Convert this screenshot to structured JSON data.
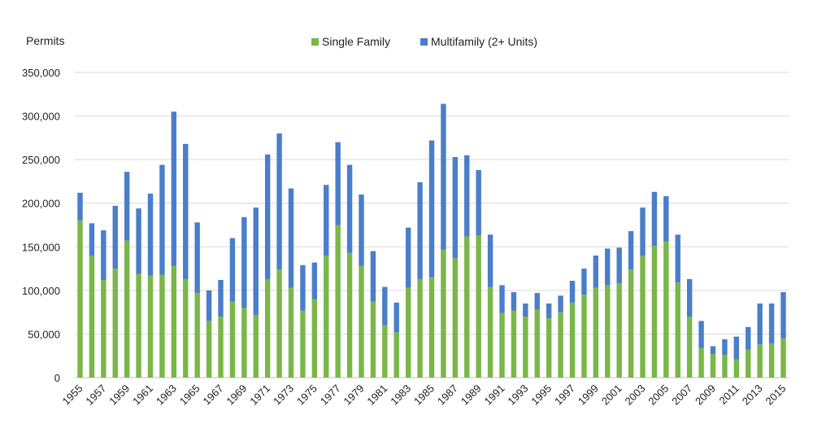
{
  "chart_data": {
    "type": "bar",
    "stacked": true,
    "ylabel": "Permits",
    "ylim": [
      0,
      350000
    ],
    "yticks": [
      0,
      50000,
      100000,
      150000,
      200000,
      250000,
      300000,
      350000
    ],
    "ytick_labels": [
      "0",
      "50,000",
      "100,000",
      "150,000",
      "200,000",
      "250,000",
      "300,000",
      "350,000"
    ],
    "grid": true,
    "legend_position": "top-center",
    "categories": [
      1955,
      1956,
      1957,
      1958,
      1959,
      1960,
      1961,
      1962,
      1963,
      1964,
      1965,
      1966,
      1967,
      1968,
      1969,
      1970,
      1971,
      1972,
      1973,
      1974,
      1975,
      1976,
      1977,
      1978,
      1979,
      1980,
      1981,
      1982,
      1983,
      1984,
      1985,
      1986,
      1987,
      1988,
      1989,
      1990,
      1991,
      1992,
      1993,
      1994,
      1995,
      1996,
      1997,
      1998,
      1999,
      2000,
      2001,
      2002,
      2003,
      2004,
      2005,
      2006,
      2007,
      2008,
      2009,
      2010,
      2011,
      2012,
      2013,
      2014,
      2015
    ],
    "xtick_labels": [
      "1955",
      "1957",
      "1959",
      "1961",
      "1963",
      "1965",
      "1967",
      "1969",
      "1971",
      "1973",
      "1975",
      "1977",
      "1979",
      "1981",
      "1983",
      "1985",
      "1987",
      "1989",
      "1991",
      "1993",
      "1995",
      "1997",
      "1999",
      "2001",
      "2003",
      "2005",
      "2007",
      "2009",
      "2011",
      "2013",
      "2015"
    ],
    "series": [
      {
        "name": "Single Family",
        "color": "#7ab648",
        "values": [
          180000,
          140000,
          112000,
          125000,
          157000,
          119000,
          117000,
          118000,
          128000,
          113000,
          97000,
          65000,
          70000,
          87000,
          80000,
          72000,
          113000,
          124000,
          103000,
          77000,
          90000,
          140000,
          175000,
          143000,
          128000,
          87000,
          60000,
          52000,
          103000,
          113000,
          115000,
          147000,
          137000,
          162000,
          163000,
          104000,
          74000,
          77000,
          70000,
          78000,
          68000,
          75000,
          86000,
          95000,
          103000,
          106000,
          108000,
          124000,
          140000,
          151000,
          156000,
          109000,
          70000,
          34000,
          27000,
          26000,
          21000,
          32000,
          38000,
          39000,
          45000
        ]
      },
      {
        "name": "Multifamily (2+ Units)",
        "color": "#4a7ec9",
        "values": [
          32000,
          37000,
          57000,
          72000,
          79000,
          75000,
          94000,
          126000,
          177000,
          155000,
          81000,
          35000,
          42000,
          73000,
          104000,
          123000,
          143000,
          156000,
          114000,
          52000,
          42000,
          81000,
          95000,
          101000,
          82000,
          58000,
          44000,
          34000,
          69000,
          111000,
          157000,
          167000,
          116000,
          93000,
          75000,
          60000,
          32000,
          21000,
          15000,
          19000,
          17000,
          19000,
          25000,
          30000,
          37000,
          42000,
          41000,
          44000,
          55000,
          62000,
          52000,
          55000,
          43000,
          31000,
          9000,
          18000,
          26000,
          26000,
          47000,
          46000,
          53000
        ]
      }
    ]
  }
}
